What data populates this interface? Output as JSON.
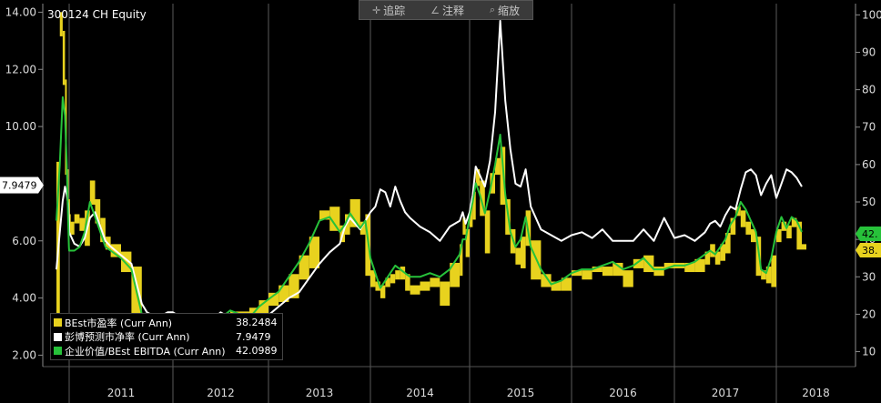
{
  "title": "300124 CH Equity",
  "toolbar": {
    "track": {
      "label": "追踪",
      "icon": "crosshair-icon"
    },
    "annotate": {
      "label": "注释",
      "icon": "pencil-icon"
    },
    "zoom": {
      "label": "缩放",
      "icon": "magnifier-icon"
    }
  },
  "legend": [
    {
      "name": "BEst市盈率 (Curr Ann)",
      "value": "38.2484",
      "color": "#e8d21e"
    },
    {
      "name": "彭博预测市净率 (Curr Ann)",
      "value": "7.9479",
      "color": "#ffffff"
    },
    {
      "name": "企业价值/BEst EBITDA (Curr Ann)",
      "value": "42.0989",
      "color": "#27c23a"
    }
  ],
  "chart_data": {
    "type": "line",
    "x_labels": [
      "2011",
      "2012",
      "2013",
      "2014",
      "2015",
      "2016",
      "2017",
      "2018"
    ],
    "left_axis": {
      "ticks": [
        "2.00",
        "4.00",
        "6.00",
        "8.00",
        "10.00",
        "12.00",
        "14.00"
      ],
      "ylim": [
        1.6,
        14.3
      ],
      "current_label": "7.9479"
    },
    "right_axis": {
      "ticks": [
        "10",
        "20",
        "30",
        "40",
        "50",
        "60",
        "70",
        "80",
        "90",
        "100"
      ],
      "ylim": [
        6,
        103
      ],
      "end_labels": [
        {
          "text": "42.",
          "color": "#27c23a"
        },
        {
          "text": "38.",
          "color": "#e8d21e"
        }
      ]
    },
    "series": [
      {
        "name": "彭博预测市净率 (Curr Ann)",
        "axis": "left",
        "color": "#ffffff",
        "x": [
          2010.65,
          2010.7,
          2010.75,
          2010.8,
          2010.85,
          2010.9,
          2010.95,
          2011.0,
          2011.05,
          2011.1,
          2011.15,
          2011.2,
          2011.25,
          2011.3,
          2011.35,
          2011.4,
          2011.5,
          2011.6,
          2011.7,
          2011.75,
          2011.8,
          2011.85,
          2011.9,
          2011.95,
          2012.0,
          2012.1,
          2012.2,
          2012.3,
          2012.4,
          2012.5,
          2012.6,
          2012.7,
          2012.8,
          2012.9,
          2013.0,
          2013.1,
          2013.2,
          2013.3,
          2013.4,
          2013.5,
          2013.6,
          2013.7,
          2013.75,
          2013.8,
          2013.9,
          2013.95,
          2014.0,
          2014.05,
          2014.1,
          2014.15,
          2014.2,
          2014.25,
          2014.3,
          2014.35,
          2014.4,
          2014.5,
          2014.6,
          2014.7,
          2014.8,
          2014.9,
          2014.93,
          2014.96,
          2015.0,
          2015.03,
          2015.06,
          2015.1,
          2015.15,
          2015.2,
          2015.25,
          2015.3,
          2015.35,
          2015.4,
          2015.45,
          2015.5,
          2015.55,
          2015.6,
          2015.7,
          2015.8,
          2015.9,
          2016.0,
          2016.1,
          2016.2,
          2016.3,
          2016.4,
          2016.5,
          2016.6,
          2016.7,
          2016.8,
          2016.9,
          2017.0,
          2017.1,
          2017.2,
          2017.3,
          2017.35,
          2017.4,
          2017.45,
          2017.5,
          2017.55,
          2017.6,
          2017.65,
          2017.7,
          2017.75,
          2017.8,
          2017.85,
          2017.9,
          2017.95,
          2018.0,
          2018.05,
          2018.1,
          2018.15,
          2018.2,
          2018.25
        ],
        "values": [
          5.0,
          6.3,
          7.4,
          7.9,
          7.6,
          7.3,
          6.8,
          6.3,
          5.9,
          5.8,
          6.1,
          6.8,
          7.0,
          6.5,
          6.0,
          5.8,
          5.5,
          5.2,
          3.8,
          3.5,
          3.4,
          3.2,
          3.4,
          3.5,
          3.5,
          3.3,
          3.1,
          3.0,
          3.2,
          3.5,
          3.3,
          3.1,
          3.0,
          3.2,
          3.4,
          3.7,
          4.0,
          4.2,
          4.7,
          5.2,
          5.6,
          5.9,
          6.5,
          6.8,
          6.4,
          6.7,
          7.0,
          7.2,
          7.8,
          7.7,
          7.2,
          7.9,
          7.4,
          7.0,
          6.8,
          6.5,
          6.3,
          6.0,
          6.5,
          6.7,
          7.0,
          6.6,
          7.0,
          7.6,
          8.6,
          8.3,
          7.9,
          8.8,
          10.5,
          13.7,
          10.9,
          9.2,
          8.0,
          7.9,
          8.5,
          7.2,
          6.4,
          6.2,
          6.0,
          6.2,
          6.3,
          6.1,
          6.4,
          6.0,
          6.0,
          6.0,
          6.4,
          6.0,
          6.8,
          6.1,
          6.2,
          6.0,
          6.3,
          6.6,
          6.7,
          6.5,
          6.9,
          7.2,
          7.1,
          7.8,
          8.4,
          8.5,
          8.3,
          7.6,
          8.0,
          8.3,
          7.5,
          8.0,
          8.5,
          8.4,
          8.2,
          7.9
        ]
      },
      {
        "name": "企业价值/BEst EBITDA (Curr Ann)",
        "axis": "right",
        "color": "#27c23a",
        "x": [
          2010.65,
          2010.7,
          2010.75,
          2010.8,
          2010.85,
          2010.9,
          2010.95,
          2011.0,
          2011.05,
          2011.1,
          2011.15,
          2011.2,
          2011.25,
          2011.3,
          2011.35,
          2011.4,
          2011.5,
          2011.6,
          2011.7,
          2011.75,
          2011.8,
          2011.85,
          2011.9,
          2011.95,
          2012.0,
          2012.1,
          2012.2,
          2012.3,
          2012.4,
          2012.5,
          2012.6,
          2012.7,
          2012.8,
          2012.9,
          2013.0,
          2013.1,
          2013.2,
          2013.3,
          2013.4,
          2013.5,
          2013.6,
          2013.7,
          2013.75,
          2013.8,
          2013.9,
          2013.95,
          2014.0,
          2014.05,
          2014.1,
          2014.15,
          2014.2,
          2014.25,
          2014.3,
          2014.35,
          2014.4,
          2014.5,
          2014.6,
          2014.7,
          2014.8,
          2014.9,
          2014.93,
          2014.96,
          2015.0,
          2015.03,
          2015.06,
          2015.1,
          2015.15,
          2015.2,
          2015.25,
          2015.3,
          2015.35,
          2015.4,
          2015.45,
          2015.5,
          2015.55,
          2015.6,
          2015.7,
          2015.8,
          2015.9,
          2016.0,
          2016.1,
          2016.2,
          2016.3,
          2016.4,
          2016.5,
          2016.6,
          2016.7,
          2016.8,
          2016.9,
          2017.0,
          2017.1,
          2017.2,
          2017.3,
          2017.35,
          2017.4,
          2017.45,
          2017.5,
          2017.55,
          2017.6,
          2017.65,
          2017.7,
          2017.75,
          2017.8,
          2017.85,
          2017.9,
          2017.95,
          2018.0,
          2018.05,
          2018.1,
          2018.15,
          2018.2,
          2018.25
        ],
        "values": [
          45,
          60,
          78,
          73,
          60,
          45,
          38,
          37,
          37,
          38,
          42,
          50,
          46,
          42,
          38,
          37,
          35,
          32,
          20,
          17,
          18,
          16,
          16,
          17,
          17,
          15,
          14,
          15,
          17,
          19,
          21,
          20,
          19,
          22,
          24,
          26,
          30,
          34,
          39,
          45,
          46,
          42,
          44,
          47,
          43,
          45,
          35,
          31,
          27,
          29,
          31,
          33,
          32,
          31,
          30,
          30,
          31,
          30,
          32,
          36,
          40,
          40,
          46,
          50,
          55,
          52,
          47,
          53,
          60,
          68,
          52,
          42,
          38,
          40,
          46,
          38,
          32,
          28,
          29,
          31,
          32,
          32,
          33,
          34,
          32,
          33,
          35,
          32,
          32,
          33,
          33,
          34,
          36,
          37,
          36,
          38,
          40,
          44,
          46,
          50,
          48,
          45,
          42,
          32,
          31,
          35,
          42,
          46,
          43,
          46,
          45,
          42
        ]
      }
    ],
    "bars": {
      "name": "BEst市盈率 (Curr Ann)",
      "axis": "right",
      "color": "#e8d21e",
      "x": [
        2010.65,
        2010.7,
        2010.75,
        2010.8,
        2010.85,
        2010.9,
        2010.95,
        2011.0,
        2011.05,
        2011.1,
        2011.15,
        2011.2,
        2011.25,
        2011.3,
        2011.35,
        2011.4,
        2011.5,
        2011.6,
        2011.7,
        2011.75,
        2011.8,
        2011.85,
        2011.9,
        2011.95,
        2012.0,
        2012.1,
        2012.2,
        2012.3,
        2012.4,
        2012.5,
        2012.6,
        2012.7,
        2012.8,
        2012.9,
        2013.0,
        2013.1,
        2013.2,
        2013.3,
        2013.4,
        2013.5,
        2013.6,
        2013.7,
        2013.75,
        2013.8,
        2013.9,
        2013.95,
        2014.0,
        2014.05,
        2014.1,
        2014.15,
        2014.2,
        2014.25,
        2014.3,
        2014.35,
        2014.4,
        2014.5,
        2014.6,
        2014.7,
        2014.8,
        2014.9,
        2014.93,
        2014.96,
        2015.0,
        2015.03,
        2015.06,
        2015.1,
        2015.15,
        2015.2,
        2015.25,
        2015.3,
        2015.35,
        2015.4,
        2015.45,
        2015.5,
        2015.55,
        2015.6,
        2015.7,
        2015.8,
        2015.9,
        2016.0,
        2016.1,
        2016.2,
        2016.3,
        2016.4,
        2016.5,
        2016.6,
        2016.7,
        2016.8,
        2016.9,
        2017.0,
        2017.1,
        2017.2,
        2017.3,
        2017.35,
        2017.4,
        2017.45,
        2017.5,
        2017.55,
        2017.6,
        2017.65,
        2017.7,
        2017.75,
        2017.8,
        2017.85,
        2017.9,
        2017.95,
        2018.0,
        2018.05,
        2018.1,
        2018.15,
        2018.2,
        2018.25
      ],
      "values": [
        60,
        100,
        95,
        82,
        58,
        50,
        46,
        44,
        46,
        45,
        47,
        55,
        50,
        45,
        40,
        38,
        36,
        32,
        18,
        16,
        16,
        17,
        15,
        15,
        16,
        14,
        14,
        16,
        17,
        19,
        20,
        20,
        21,
        23,
        25,
        27,
        30,
        35,
        40,
        47,
        48,
        43,
        46,
        50,
        44,
        46,
        31,
        28,
        27,
        29,
        30,
        31,
        32,
        30,
        27,
        28,
        29,
        28,
        33,
        38,
        45,
        42,
        48,
        52,
        58,
        55,
        47,
        57,
        61,
        64,
        50,
        42,
        37,
        40,
        47,
        39,
        30,
        28,
        29,
        31,
        31,
        32,
        32,
        33,
        31,
        34,
        35,
        32,
        33,
        33,
        33,
        34,
        36,
        38,
        36,
        38,
        41,
        45,
        48,
        47,
        44,
        42,
        40,
        31,
        32,
        35,
        42,
        44,
        43,
        45,
        44,
        38
      ]
    }
  }
}
